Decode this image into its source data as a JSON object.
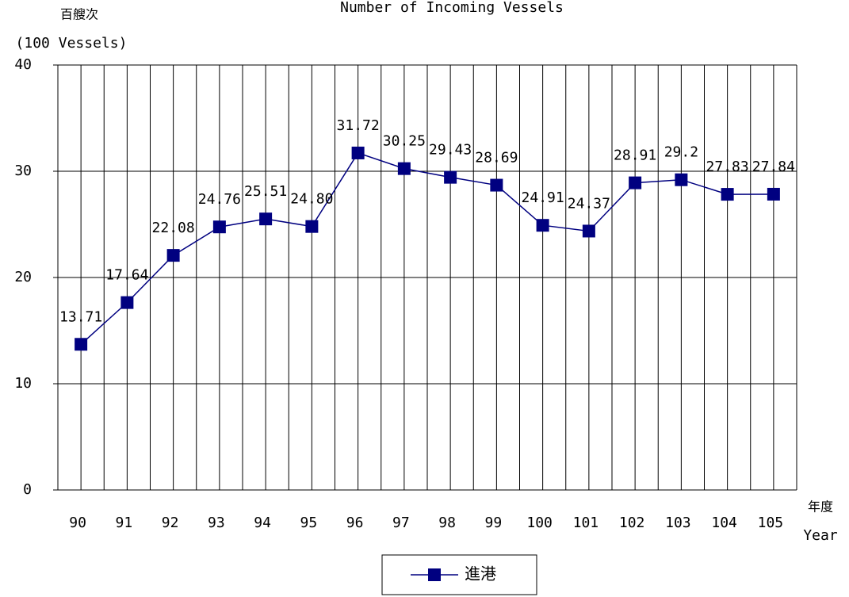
{
  "chart_data": {
    "type": "line",
    "title": "Number of Incoming Vessels",
    "y_label": "百艘次",
    "y_label_en": "(100 Vessels)",
    "x_label": "年度",
    "x_label_en": "Year",
    "categories": [
      "90",
      "91",
      "92",
      "93",
      "94",
      "95",
      "96",
      "97",
      "98",
      "99",
      "100",
      "101",
      "102",
      "103",
      "104",
      "105"
    ],
    "series": [
      {
        "name": "進港",
        "color": "#000080",
        "values": [
          13.71,
          17.64,
          22.08,
          24.76,
          25.51,
          24.8,
          31.72,
          30.25,
          29.43,
          28.69,
          24.91,
          24.37,
          28.91,
          29.2,
          27.83,
          27.84
        ],
        "value_labels": [
          "13.71",
          "17.64",
          "22.08",
          "24.76",
          "25.51",
          "24.80",
          "31.72",
          "30.25",
          "29.43",
          "28.69",
          "24.91",
          "24.37",
          "28.91",
          "29.2",
          "27.83",
          "27.84"
        ]
      }
    ],
    "ylim": [
      0,
      40
    ],
    "yticks": [
      0,
      10,
      20,
      30,
      40
    ],
    "grid": true,
    "legend": "bottom"
  }
}
